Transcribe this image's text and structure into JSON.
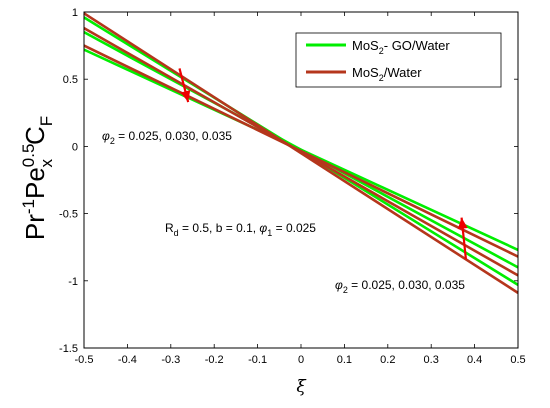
{
  "chart_data": {
    "type": "line",
    "xlabel": "ξ",
    "ylabel_parts": {
      "base1": "Pr",
      "sup1": "-1",
      "base2": "Pe",
      "sup2": "0.5",
      "sub2": "x",
      "base3": "C",
      "sub3": "F"
    },
    "xlim": [
      -0.5,
      0.5
    ],
    "ylim": [
      -1.5,
      1
    ],
    "xticks": [
      -0.5,
      -0.4,
      -0.3,
      -0.2,
      -0.1,
      0,
      0.1,
      0.2,
      0.3,
      0.4,
      0.5
    ],
    "yticks": [
      -1.5,
      -1,
      -0.5,
      0,
      0.5,
      1
    ],
    "xtick_labels": [
      "-0.5",
      "-0.4",
      "-0.3",
      "-0.2",
      "-0.1",
      "0",
      "0.1",
      "0.2",
      "0.3",
      "0.4",
      "0.5"
    ],
    "ytick_labels": [
      "-1.5",
      "-1",
      "-0.5",
      "0",
      "0.5",
      "1"
    ],
    "grid": false,
    "legend_position": "top-right",
    "legend": [
      {
        "label_base": "MoS",
        "label_sub": "2",
        "label_rest": "- GO/Water",
        "color": "#00ee00"
      },
      {
        "label_base": "MoS",
        "label_sub": "2",
        "label_rest": "/Water",
        "color": "#b5361c"
      }
    ],
    "series": [
      {
        "group": "MoS2- GO/Water",
        "color": "#00ee00",
        "phi2": 0.025,
        "x": [
          -0.5,
          0.5
        ],
        "y": [
          0.72,
          -0.77
        ]
      },
      {
        "group": "MoS2- GO/Water",
        "color": "#00ee00",
        "phi2": 0.03,
        "x": [
          -0.5,
          0.5
        ],
        "y": [
          0.85,
          -0.9
        ]
      },
      {
        "group": "MoS2- GO/Water",
        "color": "#00ee00",
        "phi2": 0.035,
        "x": [
          -0.5,
          0.5
        ],
        "y": [
          0.96,
          -1.03
        ]
      },
      {
        "group": "MoS2/Water",
        "color": "#b5361c",
        "phi2": 0.025,
        "x": [
          -0.5,
          0.5
        ],
        "y": [
          0.75,
          -0.82
        ]
      },
      {
        "group": "MoS2/Water",
        "color": "#b5361c",
        "phi2": 0.03,
        "x": [
          -0.5,
          0.5
        ],
        "y": [
          0.88,
          -0.96
        ]
      },
      {
        "group": "MoS2/Water",
        "color": "#b5361c",
        "phi2": 0.035,
        "x": [
          -0.5,
          0.5
        ],
        "y": [
          0.99,
          -1.09
        ]
      }
    ],
    "annotations": [
      {
        "phi_symbol": "φ",
        "phi_sub": "2",
        "text": " = 0.025, 0.030, 0.035"
      },
      {
        "phi_symbol": "φ",
        "phi_sub": "2",
        "text": " = 0.025, 0.030, 0.035"
      },
      {
        "text_a": "R",
        "sub_a": "d",
        "text_b": " = 0.5, b = 0.1, ",
        "phi_symbol": "φ",
        "phi_sub": "1",
        "text_c": " = 0.025"
      }
    ],
    "arrows": [
      {
        "direction": "down",
        "color": "#ee0000",
        "x": [
          -0.28,
          -0.26
        ],
        "y": [
          0.58,
          0.33
        ]
      },
      {
        "direction": "up",
        "color": "#ee0000",
        "x": [
          0.38,
          0.37
        ],
        "y": [
          -0.84,
          -0.53
        ]
      }
    ]
  }
}
